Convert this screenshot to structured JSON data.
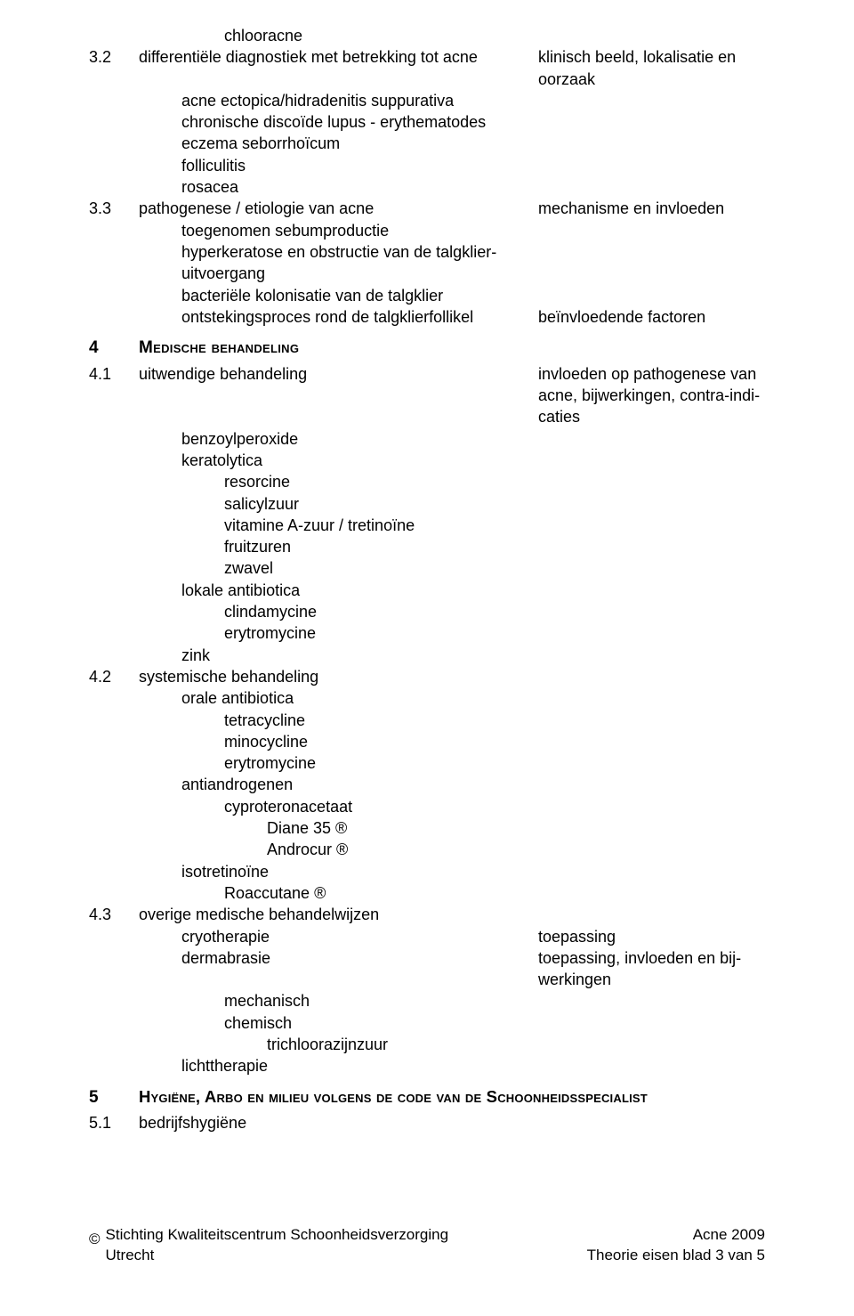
{
  "colors": {
    "text": "#000000",
    "background": "#ffffff"
  },
  "typography": {
    "body_family": "Arial",
    "body_size_pt": 13,
    "heading_weight": "bold",
    "heading_variant": "small-caps"
  },
  "lines": {
    "chlooracne": "chlooracne",
    "s3_2_num": "3.2",
    "s3_2_title": "differentiële diagnostiek met betrekking tot acne",
    "s3_2_right1": "klinisch beeld, lokalisatie en",
    "s3_2_right2": "oorzaak",
    "s3_2_a": "acne ectopica/hidradenitis suppurativa",
    "s3_2_b": "chronische discoïde lupus - erythematodes",
    "s3_2_c": "eczema seborrhoïcum",
    "s3_2_d": "folliculitis",
    "s3_2_e": "rosacea",
    "s3_3_num": "3.3",
    "s3_3_title": "pathogenese / etiologie van acne",
    "s3_3_right": "mechanisme en invloeden",
    "s3_3_a": "toegenomen sebumproductie",
    "s3_3_b1": "hyperkeratose en obstructie van de talgklier-",
    "s3_3_b2": "uitvoergang",
    "s3_3_c": "bacteriële kolonisatie van de talgklier",
    "s3_3_d": "ontstekingsproces rond de talgklierfollikel",
    "s3_3_d_right": "beïnvloedende factoren",
    "sec4_num": "4",
    "sec4_title": "Medische behandeling",
    "s4_1_num": "4.1",
    "s4_1_title": "uitwendige behandeling",
    "s4_1_right1": "invloeden op pathogenese van",
    "s4_1_right2": "acne, bijwerkingen, contra-indi-",
    "s4_1_right3": "caties",
    "s4_1_a": "benzoylperoxide",
    "s4_1_b": "keratolytica",
    "s4_1_b1": "resorcine",
    "s4_1_b2": "salicylzuur",
    "s4_1_b3": "vitamine A-zuur / tretinoïne",
    "s4_1_b4": "fruitzuren",
    "s4_1_b5": "zwavel",
    "s4_1_c": "lokale antibiotica",
    "s4_1_c1": "clindamycine",
    "s4_1_c2": "erytromycine",
    "s4_1_d": "zink",
    "s4_2_num": "4.2",
    "s4_2_title": "systemische behandeling",
    "s4_2_a": "orale antibiotica",
    "s4_2_a1": "tetracycline",
    "s4_2_a2": "minocycline",
    "s4_2_a3": "erytromycine",
    "s4_2_b": "antiandrogenen",
    "s4_2_b1": "cyproteronacetaat",
    "s4_2_b1a": "Diane 35 ®",
    "s4_2_b1b": "Androcur ®",
    "s4_2_c": "isotretinoïne",
    "s4_2_c1": "Roaccutane ®",
    "s4_3_num": "4.3",
    "s4_3_title": "overige medische behandelwijzen",
    "s4_3_a": "cryotherapie",
    "s4_3_a_right": "toepassing",
    "s4_3_b": "dermabrasie",
    "s4_3_b_right1": "toepassing, invloeden en bij-",
    "s4_3_b_right2": "werkingen",
    "s4_3_b1": "mechanisch",
    "s4_3_b2": "chemisch",
    "s4_3_b2a": "trichloorazijnzuur",
    "s4_3_c": "lichttherapie",
    "sec5_num": "5",
    "sec5_title": "Hygiëne, Arbo en milieu volgens de code van de Schoonheidsspecialist",
    "s5_1_num": "5.1",
    "s5_1_title": "bedrijfshygiëne",
    "footer_copy": "©",
    "footer_org": "Stichting Kwaliteitscentrum Schoonheidsverzorging",
    "footer_city": "Utrecht",
    "footer_right1": "Acne 2009",
    "footer_right2": "Theorie eisen blad 3 van 5"
  }
}
